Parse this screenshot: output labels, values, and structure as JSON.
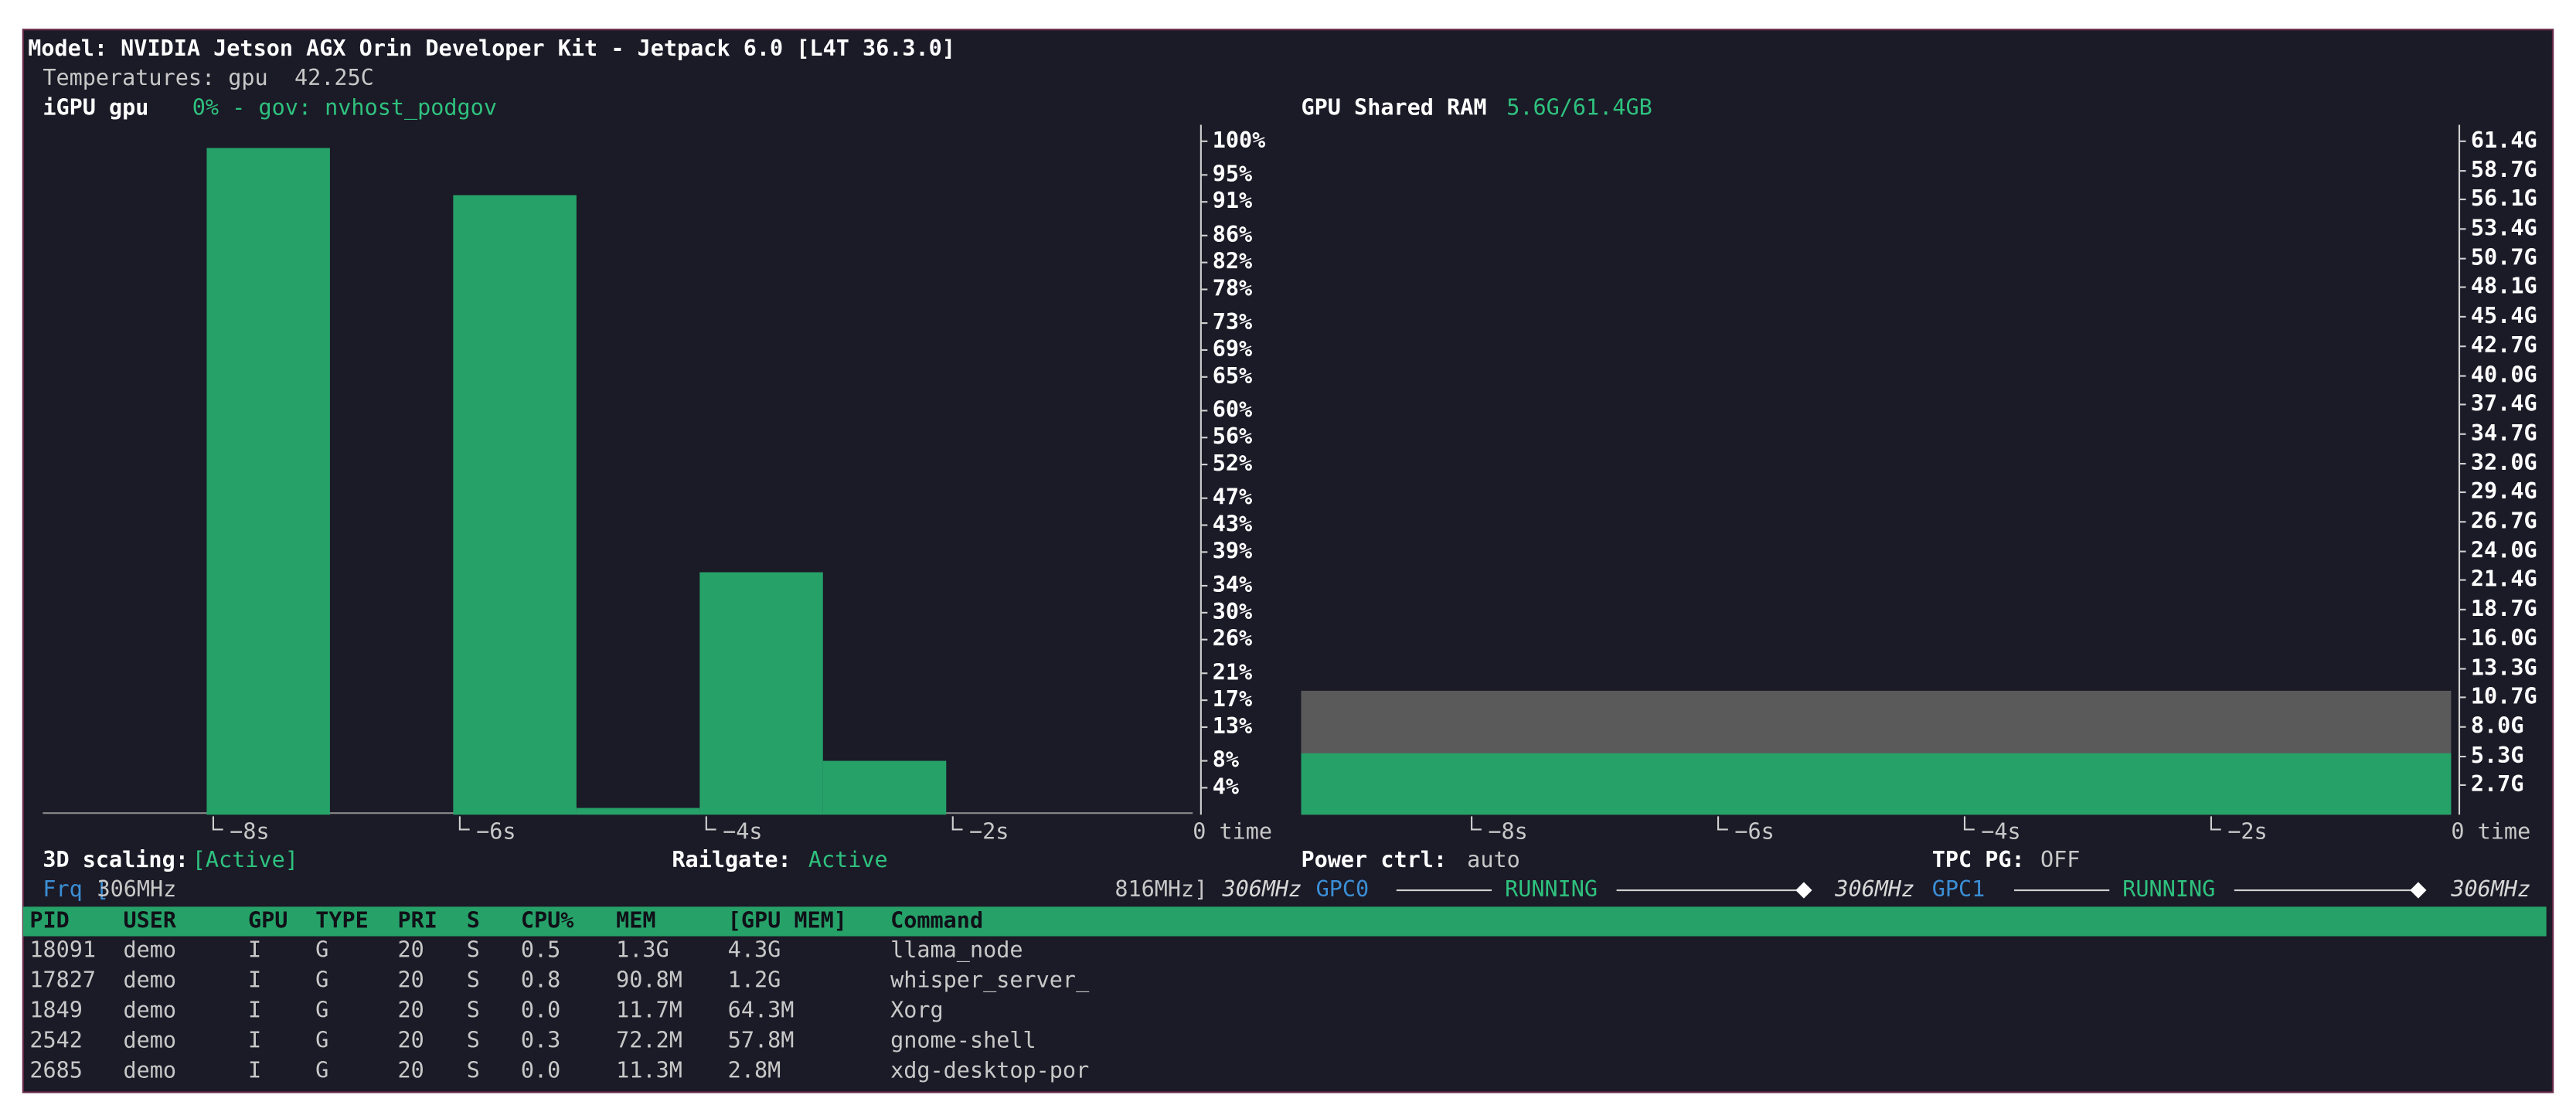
{
  "header": {
    "model": "Model: NVIDIA Jetson AGX Orin Developer Kit - Jetpack 6.0 [L4T 36.3.0]",
    "temperatures": "Temperatures: gpu  42.25C"
  },
  "gpu_chart": {
    "type": "bar",
    "title": "iGPU gpu",
    "status": "0% - gov: nvhost_podgov",
    "color": "#26a269",
    "x": [
      -9,
      -8,
      -7,
      -6,
      -5,
      -4,
      -3,
      -2,
      -1
    ],
    "values": [
      0,
      99,
      0,
      92,
      1,
      36,
      8,
      0,
      0
    ],
    "xlim": [
      -9.33,
      0
    ],
    "xticks": [
      {
        "value": -8,
        "label": "−8s"
      },
      {
        "value": -6,
        "label": "−6s"
      },
      {
        "value": -4,
        "label": "−4s"
      },
      {
        "value": -2,
        "label": "−2s"
      },
      {
        "value": 0,
        "label": "0 time"
      }
    ],
    "ylim": [
      0,
      100
    ],
    "yticks": [
      {
        "value": 100,
        "label": "100%"
      },
      {
        "value": 95,
        "label": "95%"
      },
      {
        "value": 91,
        "label": "91%"
      },
      {
        "value": 86,
        "label": "86%"
      },
      {
        "value": 82,
        "label": "82%"
      },
      {
        "value": 78,
        "label": "78%"
      },
      {
        "value": 73,
        "label": "73%"
      },
      {
        "value": 69,
        "label": "69%"
      },
      {
        "value": 65,
        "label": "65%"
      },
      {
        "value": 60,
        "label": "60%"
      },
      {
        "value": 56,
        "label": "56%"
      },
      {
        "value": 52,
        "label": "52%"
      },
      {
        "value": 47,
        "label": "47%"
      },
      {
        "value": 43,
        "label": "43%"
      },
      {
        "value": 39,
        "label": "39%"
      },
      {
        "value": 34,
        "label": "34%"
      },
      {
        "value": 30,
        "label": "30%"
      },
      {
        "value": 26,
        "label": "26%"
      },
      {
        "value": 21,
        "label": "21%"
      },
      {
        "value": 17,
        "label": "17%"
      },
      {
        "value": 13,
        "label": "13%"
      },
      {
        "value": 8,
        "label": "8%"
      },
      {
        "value": 4,
        "label": "4%"
      }
    ]
  },
  "ram_chart": {
    "type": "area",
    "title": "GPU Shared RAM",
    "status": "5.6G/61.4GB",
    "series": [
      {
        "color": "#5a5a5a",
        "value": 11.3
      },
      {
        "color": "#26a269",
        "value": 5.6
      }
    ],
    "xlim": [
      -9.33,
      0
    ],
    "xticks": [
      {
        "value": -8,
        "label": "−8s"
      },
      {
        "value": -6,
        "label": "−6s"
      },
      {
        "value": -4,
        "label": "−4s"
      },
      {
        "value": -2,
        "label": "−2s"
      },
      {
        "value": 0,
        "label": "0 time"
      }
    ],
    "ylim": [
      0,
      61.4
    ],
    "yticks": [
      {
        "value": 61.4,
        "label": "61.4G"
      },
      {
        "value": 58.7,
        "label": "58.7G"
      },
      {
        "value": 56.1,
        "label": "56.1G"
      },
      {
        "value": 53.4,
        "label": "53.4G"
      },
      {
        "value": 50.7,
        "label": "50.7G"
      },
      {
        "value": 48.1,
        "label": "48.1G"
      },
      {
        "value": 45.4,
        "label": "45.4G"
      },
      {
        "value": 42.7,
        "label": "42.7G"
      },
      {
        "value": 40.0,
        "label": "40.0G"
      },
      {
        "value": 37.4,
        "label": "37.4G"
      },
      {
        "value": 34.7,
        "label": "34.7G"
      },
      {
        "value": 32.0,
        "label": "32.0G"
      },
      {
        "value": 29.4,
        "label": "29.4G"
      },
      {
        "value": 26.7,
        "label": "26.7G"
      },
      {
        "value": 24.0,
        "label": "24.0G"
      },
      {
        "value": 21.4,
        "label": "21.4G"
      },
      {
        "value": 18.7,
        "label": "18.7G"
      },
      {
        "value": 16.0,
        "label": "16.0G"
      },
      {
        "value": 13.3,
        "label": "13.3G"
      },
      {
        "value": 10.7,
        "label": "10.7G"
      },
      {
        "value": 8.0,
        "label": "8.0G"
      },
      {
        "value": 5.3,
        "label": "5.3G"
      },
      {
        "value": 2.7,
        "label": "2.7G"
      }
    ]
  },
  "status": {
    "scaling": {
      "label": "3D scaling:",
      "value": "[Active]"
    },
    "railgate": {
      "label": "Railgate:",
      "value": "Active"
    },
    "power": {
      "label": "Power ctrl:",
      "value": "auto"
    },
    "tpc": {
      "label": "TPC PG:",
      "value": "OFF"
    }
  },
  "frequency": {
    "label": "Frq [",
    "min": "306MHz",
    "max": "816MHz]",
    "current": "306MHz",
    "gpc0": {
      "name": "GPC0",
      "state": "RUNNING",
      "frequency": "306MHz"
    },
    "gpc1": {
      "name": "GPC1",
      "state": "RUNNING",
      "frequency": "306MHz"
    }
  },
  "table": {
    "headers": [
      "PID",
      "USER",
      "GPU",
      "TYPE",
      "PRI",
      "S",
      "CPU%",
      "MEM",
      "[GPU MEM]",
      "Command"
    ],
    "rows": [
      [
        "18091",
        "demo",
        "I",
        "G",
        "20",
        "S",
        "0.5",
        "1.3G",
        "4.3G",
        "llama_node"
      ],
      [
        "17827",
        "demo",
        "I",
        "G",
        "20",
        "S",
        "0.8",
        "90.8M",
        "1.2G",
        "whisper_server_"
      ],
      [
        "1849",
        "demo",
        "I",
        "G",
        "20",
        "S",
        "0.0",
        "11.7M",
        "64.3M",
        "Xorg"
      ],
      [
        "2542",
        "demo",
        "I",
        "G",
        "20",
        "S",
        "0.3",
        "72.2M",
        "57.8M",
        "gnome-shell"
      ],
      [
        "2685",
        "demo",
        "I",
        "G",
        "20",
        "S",
        "0.0",
        "11.3M",
        "2.8M",
        "xdg-desktop-por"
      ]
    ]
  }
}
